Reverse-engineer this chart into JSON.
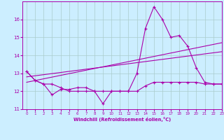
{
  "xlabel": "Windchill (Refroidissement éolien,°C)",
  "background_color": "#cceeff",
  "line_color": "#aa00aa",
  "grid_color": "#aacccc",
  "x_values": [
    0,
    1,
    2,
    3,
    4,
    5,
    6,
    7,
    8,
    9,
    10,
    11,
    12,
    13,
    14,
    15,
    16,
    17,
    18,
    19,
    20,
    21,
    22,
    23
  ],
  "series1": [
    13.1,
    12.6,
    12.4,
    11.8,
    12.1,
    12.1,
    12.2,
    12.2,
    12.0,
    11.3,
    12.0,
    12.0,
    12.0,
    13.0,
    15.5,
    16.7,
    16.0,
    15.0,
    15.1,
    14.5,
    13.3,
    12.5,
    12.4,
    12.4
  ],
  "series2": [
    13.1,
    12.6,
    12.4,
    12.4,
    12.2,
    12.0,
    12.0,
    12.0,
    12.0,
    12.0,
    12.0,
    12.0,
    12.0,
    12.0,
    12.3,
    12.5,
    12.5,
    12.5,
    12.5,
    12.5,
    12.5,
    12.4,
    12.4,
    12.4
  ],
  "trend1_x": [
    0,
    23
  ],
  "trend1_y": [
    12.5,
    14.7
  ],
  "trend2_x": [
    0,
    23
  ],
  "trend2_y": [
    12.8,
    14.2
  ],
  "ylim": [
    11.0,
    17.0
  ],
  "xlim": [
    -0.5,
    23
  ],
  "yticks": [
    11,
    12,
    13,
    14,
    15,
    16
  ],
  "xticks": [
    0,
    1,
    2,
    3,
    4,
    5,
    6,
    7,
    8,
    9,
    10,
    11,
    12,
    13,
    14,
    15,
    16,
    17,
    18,
    19,
    20,
    21,
    22,
    23
  ]
}
